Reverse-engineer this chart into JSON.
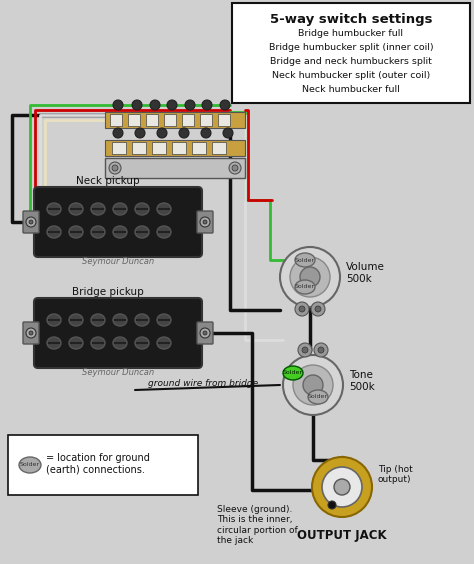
{
  "title": "5-way switch settings",
  "switch_lines": [
    "Bridge humbucker full",
    "Bridge humbucker split (inner coil)",
    "Bridge and neck humbuckers split",
    "Neck humbucker split (outer coil)",
    "Neck humbucker full"
  ],
  "bg_color": "#e8e8e8",
  "neck_pickup_label": "Neck pickup",
  "bridge_pickup_label": "Bridge pickup",
  "seymour_label": "Seymour Duncan",
  "volume_label": "Volume\n500k",
  "tone_label": "Tone\n500k",
  "ground_label": "ground wire from bridge",
  "output_label": "OUTPUT JACK",
  "tip_label": "Tip (hot\noutput)",
  "sleeve_label": "Sleeve (ground).\nThis is the inner,\ncircular portion of\nthe jack",
  "solder_legend": "= location for ground\n(earth) connections.",
  "wire_black": "#111111",
  "wire_red": "#cc0000",
  "wire_green": "#33bb33",
  "wire_white": "#dddddd",
  "wire_cream": "#e8e0c0"
}
